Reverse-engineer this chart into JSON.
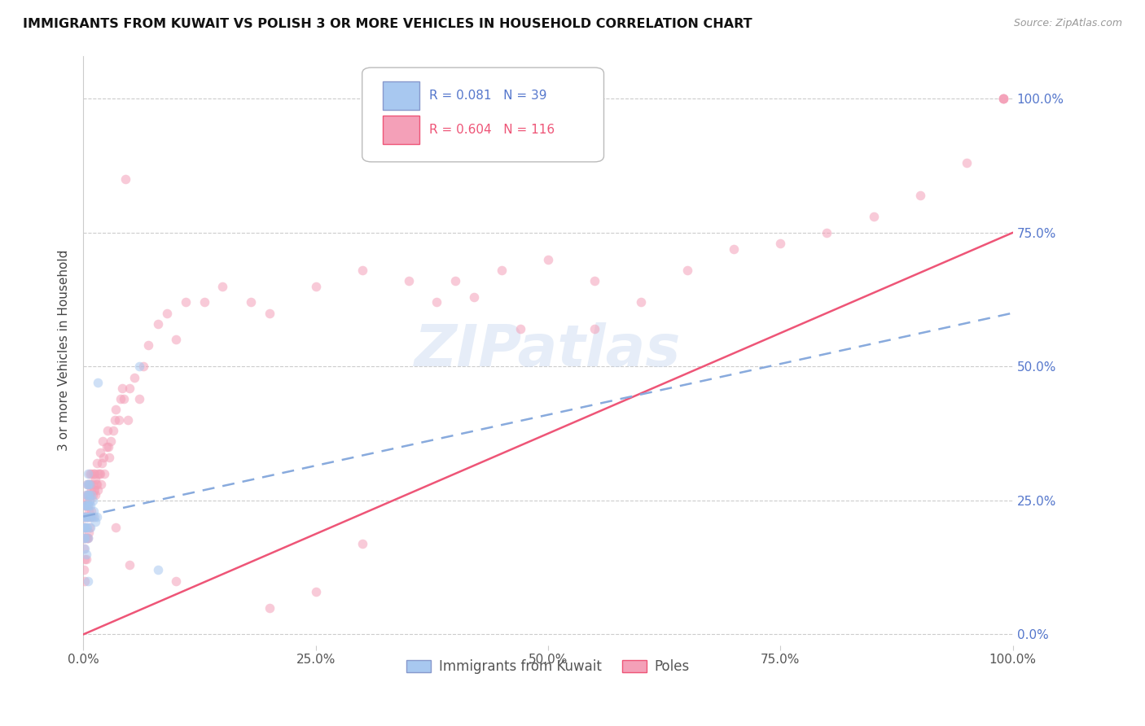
{
  "title": "IMMIGRANTS FROM KUWAIT VS POLISH 3 OR MORE VEHICLES IN HOUSEHOLD CORRELATION CHART",
  "source": "Source: ZipAtlas.com",
  "ylabel": "3 or more Vehicles in Household",
  "watermark": "ZIPatlas",
  "legend_entries": [
    {
      "label": "Immigrants from Kuwait",
      "color": "#a8c8f0",
      "R": "0.081",
      "N": "39"
    },
    {
      "label": "Poles",
      "color": "#f4a0b8",
      "R": "0.604",
      "N": "116"
    }
  ],
  "xlim": [
    0,
    1.0
  ],
  "ylim": [
    -0.02,
    1.08
  ],
  "grid_color": "#cccccc",
  "background_color": "#ffffff",
  "kuwait_color": "#a8c8f0",
  "poland_color": "#f4a0b8",
  "kuwait_trend_color": "#88aadd",
  "poland_trend_color": "#ee5577",
  "marker_size": 70,
  "marker_alpha": 0.55,
  "trend_linewidth": 1.8,
  "kuwait_trend_start_y": 0.22,
  "kuwait_trend_end_y": 0.6,
  "poland_trend_start_y": 0.0,
  "poland_trend_end_y": 0.75,
  "kuwait_x": [
    0.001,
    0.001,
    0.001,
    0.002,
    0.002,
    0.002,
    0.002,
    0.002,
    0.003,
    0.003,
    0.003,
    0.003,
    0.003,
    0.004,
    0.004,
    0.004,
    0.005,
    0.005,
    0.005,
    0.005,
    0.005,
    0.006,
    0.006,
    0.007,
    0.007,
    0.007,
    0.008,
    0.008,
    0.009,
    0.009,
    0.01,
    0.011,
    0.012,
    0.013,
    0.015,
    0.016,
    0.06,
    0.08,
    0.005
  ],
  "kuwait_y": [
    0.22,
    0.2,
    0.18,
    0.24,
    0.22,
    0.2,
    0.18,
    0.16,
    0.26,
    0.24,
    0.22,
    0.2,
    0.15,
    0.28,
    0.24,
    0.2,
    0.3,
    0.28,
    0.26,
    0.22,
    0.18,
    0.26,
    0.24,
    0.28,
    0.25,
    0.22,
    0.24,
    0.2,
    0.26,
    0.22,
    0.25,
    0.23,
    0.22,
    0.21,
    0.22,
    0.47,
    0.5,
    0.12,
    0.1
  ],
  "poland_x": [
    0.001,
    0.001,
    0.001,
    0.001,
    0.001,
    0.002,
    0.002,
    0.002,
    0.002,
    0.002,
    0.002,
    0.003,
    0.003,
    0.003,
    0.003,
    0.003,
    0.004,
    0.004,
    0.004,
    0.004,
    0.005,
    0.005,
    0.005,
    0.005,
    0.006,
    0.006,
    0.006,
    0.006,
    0.007,
    0.007,
    0.007,
    0.007,
    0.008,
    0.008,
    0.008,
    0.009,
    0.009,
    0.009,
    0.01,
    0.01,
    0.01,
    0.011,
    0.011,
    0.012,
    0.012,
    0.013,
    0.013,
    0.014,
    0.015,
    0.015,
    0.016,
    0.016,
    0.017,
    0.018,
    0.018,
    0.019,
    0.02,
    0.021,
    0.022,
    0.023,
    0.025,
    0.026,
    0.027,
    0.028,
    0.03,
    0.032,
    0.034,
    0.035,
    0.038,
    0.04,
    0.042,
    0.044,
    0.048,
    0.05,
    0.055,
    0.06,
    0.065,
    0.07,
    0.08,
    0.09,
    0.1,
    0.11,
    0.13,
    0.15,
    0.18,
    0.2,
    0.25,
    0.3,
    0.35,
    0.38,
    0.4,
    0.42,
    0.45,
    0.5,
    0.55,
    0.6,
    0.65,
    0.7,
    0.75,
    0.8,
    0.85,
    0.9,
    0.95,
    0.99,
    0.99,
    0.99,
    0.99,
    0.045,
    0.47,
    0.55,
    0.035,
    0.3,
    0.05,
    0.1,
    0.2,
    0.25
  ],
  "poland_y": [
    0.22,
    0.2,
    0.18,
    0.16,
    0.12,
    0.24,
    0.22,
    0.2,
    0.18,
    0.14,
    0.1,
    0.26,
    0.24,
    0.22,
    0.18,
    0.14,
    0.28,
    0.25,
    0.22,
    0.18,
    0.26,
    0.24,
    0.22,
    0.18,
    0.28,
    0.26,
    0.23,
    0.19,
    0.3,
    0.28,
    0.25,
    0.2,
    0.28,
    0.26,
    0.22,
    0.3,
    0.27,
    0.23,
    0.28,
    0.26,
    0.22,
    0.3,
    0.27,
    0.3,
    0.27,
    0.29,
    0.26,
    0.28,
    0.32,
    0.28,
    0.3,
    0.27,
    0.3,
    0.34,
    0.3,
    0.28,
    0.32,
    0.36,
    0.33,
    0.3,
    0.35,
    0.38,
    0.35,
    0.33,
    0.36,
    0.38,
    0.4,
    0.42,
    0.4,
    0.44,
    0.46,
    0.44,
    0.4,
    0.46,
    0.48,
    0.44,
    0.5,
    0.54,
    0.58,
    0.6,
    0.55,
    0.62,
    0.62,
    0.65,
    0.62,
    0.6,
    0.65,
    0.68,
    0.66,
    0.62,
    0.66,
    0.63,
    0.68,
    0.7,
    0.66,
    0.62,
    0.68,
    0.72,
    0.73,
    0.75,
    0.78,
    0.82,
    0.88,
    1.0,
    1.0,
    1.0,
    1.0,
    0.85,
    0.57,
    0.57,
    0.2,
    0.17,
    0.13,
    0.1,
    0.05,
    0.08
  ]
}
